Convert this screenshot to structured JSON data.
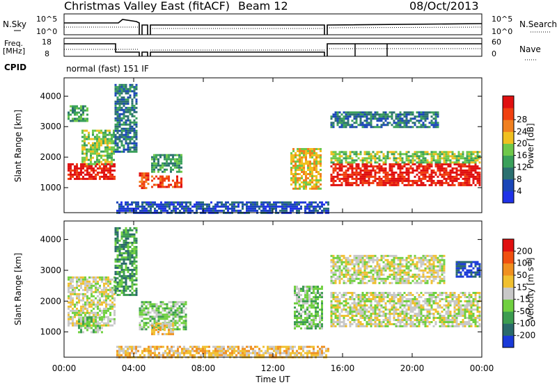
{
  "title": {
    "radar": "Christmas Valley East (fitACF)",
    "beam": "Beam 12",
    "date": "08/Oct/2013"
  },
  "top_panels": {
    "nsky_label": "N.Sky",
    "nsearch_label": "N.Search",
    "noise_ticks": [
      "10^5",
      "10^0"
    ],
    "freq_label_line1": "Freq.",
    "freq_label_line2": "[MHz]",
    "freq_ticks": [
      "18",
      "8"
    ],
    "nave_label": "Nave",
    "nave_ticks": [
      "60",
      "0"
    ],
    "cpid_label": "CPID",
    "cpid_value": "normal (fast) 151 IF"
  },
  "axes": {
    "xlabel": "Time UT",
    "ylabel": "Slant Range [km]",
    "xticks": [
      "00:00",
      "04:00",
      "08:00",
      "12:00",
      "16:00",
      "20:00",
      "00:00"
    ],
    "yticks": [
      "1000",
      "2000",
      "3000",
      "4000"
    ]
  },
  "chart_data": [
    {
      "type": "heatmap",
      "name": "power",
      "x_unit": "hours UT",
      "y_unit": "km",
      "xlim": [
        0,
        24
      ],
      "ylim": [
        180,
        4600
      ],
      "colorbar": {
        "label": "Power [dB]",
        "ticks": [
          "4",
          "8",
          "12",
          "16",
          "20",
          "24",
          "28"
        ],
        "colors": [
          "#1f32e8",
          "#1a46b8",
          "#2b7070",
          "#3aa05a",
          "#6fc84a",
          "#f0c020",
          "#f08020",
          "#f04010",
          "#e01010"
        ]
      },
      "regions": [
        {
          "x": [
            0.2,
            2.9
          ],
          "y": [
            1300,
            1800
          ],
          "level": 8
        },
        {
          "x": [
            1.0,
            2.9
          ],
          "y": [
            1800,
            2900
          ],
          "level": 4
        },
        {
          "x": [
            0.2,
            1.3
          ],
          "y": [
            3200,
            3700
          ],
          "level": 3
        },
        {
          "x": [
            2.9,
            4.2
          ],
          "y": [
            2200,
            4400
          ],
          "level": 2
        },
        {
          "x": [
            4.3,
            4.9
          ],
          "y": [
            1000,
            1500
          ],
          "level": 7
        },
        {
          "x": [
            5.0,
            6.8
          ],
          "y": [
            1000,
            1400
          ],
          "level": 7
        },
        {
          "x": [
            5.0,
            6.8
          ],
          "y": [
            1500,
            2100
          ],
          "level": 3
        },
        {
          "x": [
            13.0,
            14.7
          ],
          "y": [
            1000,
            2300
          ],
          "level": 5
        },
        {
          "x": [
            15.3,
            23.9
          ],
          "y": [
            1100,
            1800
          ],
          "level": 8
        },
        {
          "x": [
            15.3,
            23.9
          ],
          "y": [
            1800,
            2200
          ],
          "level": 4
        },
        {
          "x": [
            15.3,
            21.5
          ],
          "y": [
            3000,
            3500
          ],
          "level": 2
        },
        {
          "x": [
            3.0,
            15.2
          ],
          "y": [
            200,
            550
          ],
          "level": 1
        }
      ]
    },
    {
      "type": "heatmap",
      "name": "velocity",
      "x_unit": "hours UT",
      "y_unit": "km",
      "xlim": [
        0,
        24
      ],
      "ylim": [
        180,
        4600
      ],
      "colorbar": {
        "label_main": "Velocity [m s",
        "label_sup": "-1",
        "label_end": "]",
        "ticks": [
          "200",
          "100",
          "50",
          "15",
          "-15",
          "-50",
          "-100",
          "-200"
        ],
        "colors": [
          "#1a3ad8",
          "#2a6a6a",
          "#3c9c50",
          "#70d040",
          "#c8c8c8",
          "#f0c030",
          "#f09020",
          "#f05010",
          "#e01010"
        ]
      },
      "regions": [
        {
          "x": [
            0.2,
            2.9
          ],
          "y": [
            1200,
            2800
          ],
          "level": 4
        },
        {
          "x": [
            0.8,
            2.2
          ],
          "y": [
            1000,
            1500
          ],
          "level": 3
        },
        {
          "x": [
            2.9,
            4.2
          ],
          "y": [
            2200,
            4400
          ],
          "level": 2
        },
        {
          "x": [
            4.3,
            7.0
          ],
          "y": [
            1100,
            2000
          ],
          "level": 3
        },
        {
          "x": [
            5.0,
            6.2
          ],
          "y": [
            900,
            1300
          ],
          "level": 5
        },
        {
          "x": [
            13.2,
            14.8
          ],
          "y": [
            1100,
            2500
          ],
          "level": 3
        },
        {
          "x": [
            15.3,
            23.9
          ],
          "y": [
            1200,
            2300
          ],
          "level": 4
        },
        {
          "x": [
            15.3,
            21.8
          ],
          "y": [
            2600,
            3500
          ],
          "level": 4
        },
        {
          "x": [
            22.5,
            23.9
          ],
          "y": [
            2800,
            3300
          ],
          "level": 0
        },
        {
          "x": [
            3.0,
            15.2
          ],
          "y": [
            200,
            550
          ],
          "level": 5
        }
      ]
    }
  ]
}
